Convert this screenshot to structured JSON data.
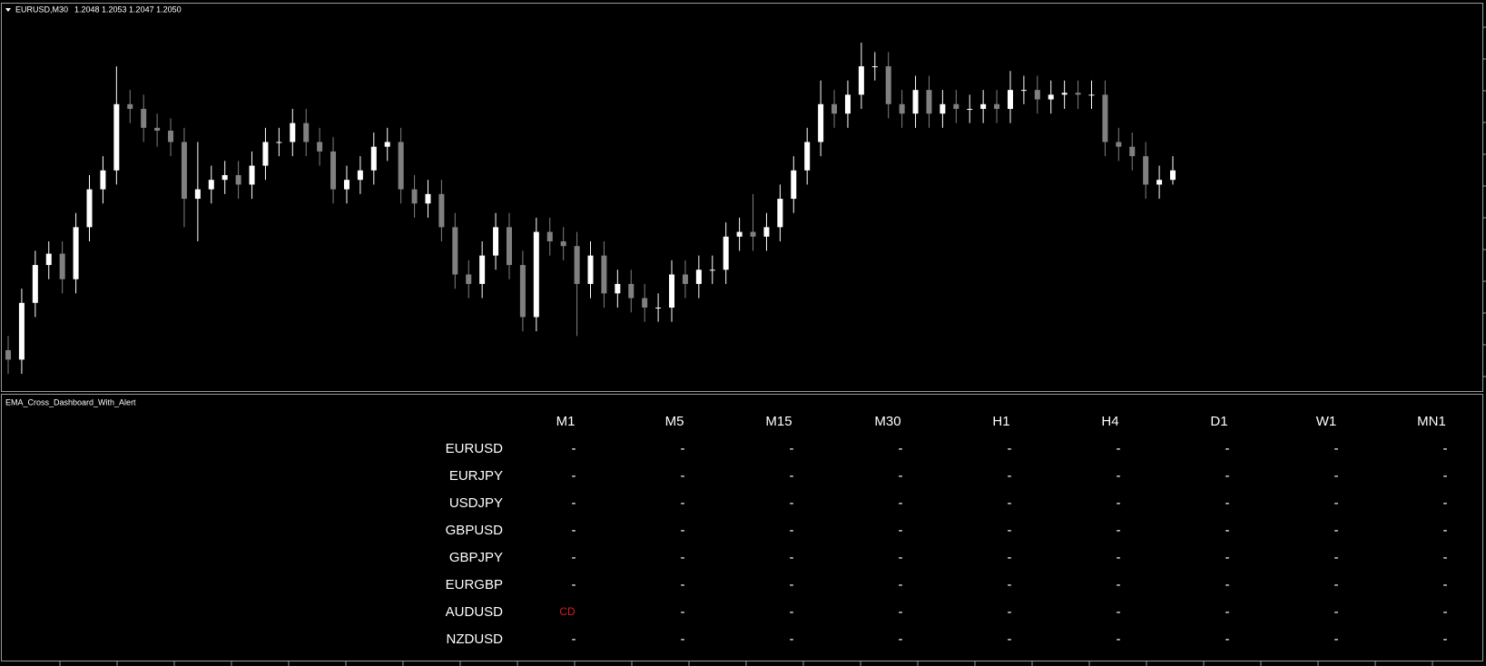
{
  "chart_data": {
    "type": "candlestick",
    "symbol": "EURUSD,M30",
    "quote": "1.2048 1.2053 1.2047 1.2050",
    "up_color": "#ffffff",
    "down_color": "#808080",
    "open": [
      1.2012,
      1.201,
      1.2022,
      1.203,
      1.20324,
      1.2027,
      1.2038,
      1.2046,
      1.205,
      1.2064,
      1.2063,
      1.2059,
      1.20584,
      1.2056,
      1.2044,
      1.2046,
      1.2048,
      1.2049,
      1.2047,
      1.2051,
      1.2056,
      1.2056,
      1.206,
      1.2056,
      1.2054,
      1.2046,
      1.2048,
      1.205,
      1.2055,
      1.2056,
      1.2046,
      1.2043,
      1.2045,
      1.2038,
      1.2028,
      1.2026,
      1.2032,
      1.2038,
      1.203,
      1.2019,
      1.2037,
      1.2035,
      1.2034,
      1.2026,
      1.2032,
      1.2024,
      1.2026,
      1.2023,
      1.2021,
      1.2021,
      1.2028,
      1.2026,
      1.2029,
      1.2029,
      1.2036,
      1.2037,
      1.2036,
      1.2038,
      1.2044,
      1.205,
      1.2056,
      1.2064,
      1.2062,
      1.2066,
      1.2072,
      1.2072,
      1.2064,
      1.2062,
      1.2067,
      1.2062,
      1.2064,
      1.2063,
      1.2063,
      1.2064,
      1.2063,
      1.2067,
      1.2067,
      1.2065,
      1.2066,
      1.20664,
      1.2066,
      1.2066,
      1.2056,
      1.2055,
      1.2053,
      1.2047,
      1.2048
    ],
    "high": [
      1.2015,
      1.2025,
      1.2033,
      1.2035,
      1.2035,
      1.2041,
      1.2049,
      1.2053,
      1.2072,
      1.2067,
      1.2066,
      1.2062,
      1.2061,
      1.2059,
      1.2056,
      1.2051,
      1.2052,
      1.2052,
      1.2054,
      1.2059,
      1.2059,
      1.2063,
      1.2063,
      1.2059,
      1.2057,
      1.2051,
      1.2053,
      1.2058,
      1.2059,
      1.2059,
      1.2049,
      1.2048,
      1.2048,
      1.2041,
      1.2031,
      1.2035,
      1.2041,
      1.2041,
      1.2033,
      1.204,
      1.204,
      1.2038,
      1.2037,
      1.2035,
      1.2035,
      1.2029,
      1.2029,
      1.2026,
      1.2024,
      1.2031,
      1.2031,
      1.2032,
      1.2032,
      1.2039,
      1.204,
      1.2045,
      1.2041,
      1.2047,
      1.2053,
      1.2059,
      1.2069,
      1.2067,
      1.2069,
      1.2077,
      1.2075,
      1.2075,
      1.2067,
      1.207,
      1.207,
      1.2067,
      1.2067,
      1.2066,
      1.2067,
      1.2067,
      1.2071,
      1.207,
      1.207,
      1.2069,
      1.2069,
      1.2069,
      1.2069,
      1.2069,
      1.2059,
      1.2058,
      1.2056,
      1.2051,
      1.2053
    ],
    "low": [
      1.2007,
      1.2007,
      1.2019,
      1.2027,
      1.2024,
      1.2024,
      1.2035,
      1.2043,
      1.2047,
      1.206,
      1.2056,
      1.2055,
      1.2053,
      1.2038,
      1.2035,
      1.2043,
      1.2045,
      1.2044,
      1.2044,
      1.2048,
      1.2053,
      1.2053,
      1.2053,
      1.2051,
      1.2043,
      1.2043,
      1.2045,
      1.2047,
      1.2052,
      1.2043,
      1.204,
      1.204,
      1.2035,
      1.2025,
      1.2023,
      1.2023,
      1.2029,
      1.2027,
      1.2016,
      1.2016,
      1.2032,
      1.2031,
      1.2015,
      1.2023,
      1.2021,
      1.2021,
      1.202,
      1.2018,
      1.2018,
      1.2018,
      1.2023,
      1.2023,
      1.2026,
      1.2026,
      1.2033,
      1.2033,
      1.2033,
      1.2035,
      1.2041,
      1.2047,
      1.2053,
      1.2059,
      1.2059,
      1.2063,
      1.2069,
      1.2061,
      1.2059,
      1.2059,
      1.2059,
      1.2059,
      1.206,
      1.206,
      1.206,
      1.206,
      1.206,
      1.2064,
      1.2062,
      1.2062,
      1.2063,
      1.2063,
      1.2063,
      1.2053,
      1.2052,
      1.205,
      1.2044,
      1.2044,
      1.2047
    ],
    "close": [
      1.201,
      1.2022,
      1.203,
      1.20324,
      1.2027,
      1.2038,
      1.2046,
      1.205,
      1.2064,
      1.2063,
      1.2059,
      1.20584,
      1.2056,
      1.2044,
      1.2046,
      1.2048,
      1.2049,
      1.2047,
      1.2051,
      1.2056,
      1.2056,
      1.206,
      1.2056,
      1.2054,
      1.2046,
      1.2048,
      1.205,
      1.2055,
      1.2056,
      1.2046,
      1.2043,
      1.2045,
      1.2038,
      1.2028,
      1.2026,
      1.2032,
      1.2038,
      1.203,
      1.2019,
      1.2037,
      1.2035,
      1.2034,
      1.2026,
      1.2032,
      1.2024,
      1.2026,
      1.2023,
      1.2021,
      1.2021,
      1.2028,
      1.2026,
      1.2029,
      1.2029,
      1.2036,
      1.2037,
      1.2036,
      1.2038,
      1.2044,
      1.205,
      1.2056,
      1.2064,
      1.2062,
      1.2066,
      1.2072,
      1.2072,
      1.2064,
      1.2062,
      1.2067,
      1.2062,
      1.2064,
      1.2063,
      1.2063,
      1.2064,
      1.2063,
      1.2067,
      1.2067,
      1.2065,
      1.2066,
      1.20664,
      1.2066,
      1.2066,
      1.2056,
      1.2055,
      1.2053,
      1.2047,
      1.2048,
      1.205
    ]
  },
  "dashboard": {
    "title": "EMA_Cross_Dashboard_With_Alert",
    "signal_color": "#d42020",
    "columns": [
      "M1",
      "M5",
      "M15",
      "M30",
      "H1",
      "H4",
      "D1",
      "W1",
      "MN1"
    ],
    "rows": [
      {
        "pair": "EURUSD",
        "cells": [
          "-",
          "-",
          "-",
          "-",
          "-",
          "-",
          "-",
          "-",
          "-"
        ]
      },
      {
        "pair": "EURJPY",
        "cells": [
          "-",
          "-",
          "-",
          "-",
          "-",
          "-",
          "-",
          "-",
          "-"
        ]
      },
      {
        "pair": "USDJPY",
        "cells": [
          "-",
          "-",
          "-",
          "-",
          "-",
          "-",
          "-",
          "-",
          "-"
        ]
      },
      {
        "pair": "GBPUSD",
        "cells": [
          "-",
          "-",
          "-",
          "-",
          "-",
          "-",
          "-",
          "-",
          "-"
        ]
      },
      {
        "pair": "GBPJPY",
        "cells": [
          "-",
          "-",
          "-",
          "-",
          "-",
          "-",
          "-",
          "-",
          "-"
        ]
      },
      {
        "pair": "EURGBP",
        "cells": [
          "-",
          "-",
          "-",
          "-",
          "-",
          "-",
          "-",
          "-",
          "-"
        ]
      },
      {
        "pair": "AUDUSD",
        "cells": [
          "CD",
          "-",
          "-",
          "-",
          "-",
          "-",
          "-",
          "-",
          "-"
        ]
      },
      {
        "pair": "NZDUSD",
        "cells": [
          "-",
          "-",
          "-",
          "-",
          "-",
          "-",
          "-",
          "-",
          "-"
        ]
      }
    ]
  }
}
